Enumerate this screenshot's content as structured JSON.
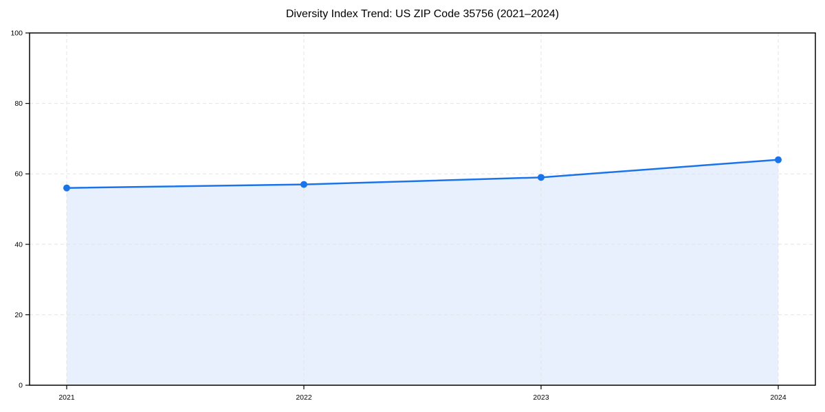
{
  "chart_data": {
    "type": "area",
    "title": "Diversity Index Trend: US ZIP Code 35756 (2021–2024)",
    "x": [
      "2021",
      "2022",
      "2023",
      "2024"
    ],
    "series": [
      {
        "name": "Diversity Index",
        "values": [
          56,
          57,
          59,
          64
        ]
      }
    ],
    "ylim": [
      0,
      100
    ],
    "yticks": [
      0,
      20,
      40,
      60,
      80,
      100
    ],
    "grid": true,
    "legend": "none",
    "colors": {
      "line": "#1a73e8",
      "fill": "#e8f0fe",
      "grid": "#e3e3e3",
      "axis": "#000000",
      "text": "#000000"
    }
  }
}
